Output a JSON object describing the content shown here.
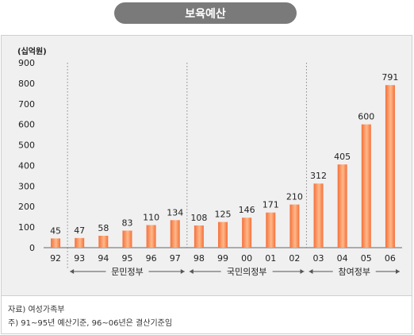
{
  "chart_data": {
    "type": "bar",
    "title": "보육예산",
    "unit_label": "(십억원)",
    "categories": [
      "92",
      "93",
      "94",
      "95",
      "96",
      "97",
      "98",
      "99",
      "00",
      "01",
      "02",
      "03",
      "04",
      "05",
      "06"
    ],
    "values": [
      45,
      47,
      58,
      83,
      110,
      134,
      108,
      125,
      146,
      171,
      210,
      312,
      405,
      600,
      791
    ],
    "data_labels": [
      "45",
      "47",
      "58",
      "83",
      "110",
      "134",
      "108",
      "125",
      "146",
      "171",
      "210",
      "312",
      "405",
      "600",
      "791"
    ],
    "y_ticks": [
      0,
      100,
      200,
      300,
      400,
      500,
      600,
      700,
      800,
      900
    ],
    "ylim": [
      0,
      900
    ],
    "grid": false,
    "bar_color_top": "#ffb98a",
    "bar_color_bottom": "#f4703a",
    "periods": [
      {
        "label": "문민정부",
        "start": "93",
        "end": "97"
      },
      {
        "label": "국민의정부",
        "start": "98",
        "end": "02"
      },
      {
        "label": "참여정부",
        "start": "03",
        "end": "06"
      }
    ]
  },
  "notes": {
    "source": "자료) 여성가족부",
    "footnote": "주) 91~95년 예산기준, 96~06년은 결산기준임"
  }
}
